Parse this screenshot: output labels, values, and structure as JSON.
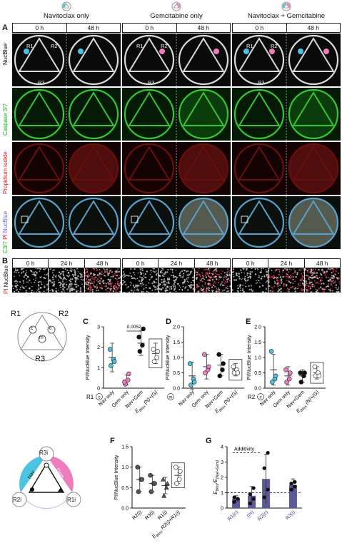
{
  "panel_letters": {
    "A": "A",
    "B": "B",
    "C": "C",
    "D": "D",
    "E": "E",
    "F": "F",
    "G": "G"
  },
  "conditions": [
    {
      "title": "Navitoclax only",
      "dot_left": "#4cc3e0",
      "dot_right": "#ffffff"
    },
    {
      "title": "Gemcitabine only",
      "dot_left": "#ffffff",
      "dot_right": "#ee7dc0"
    },
    {
      "title": "Navitoclax + Gemcitabine",
      "dot_left": "#4cc3e0",
      "dot_right": "#ee7dc0"
    }
  ],
  "time_headers_A": [
    "0 h",
    "48 h"
  ],
  "row_labels_A": {
    "nucblue": "NucBlue",
    "caspase": "Caspase 3/7",
    "pi": "Propidium iodide",
    "merge_c37": "C3/7",
    "merge_pi": "PI",
    "merge_nuc": "NucBlue"
  },
  "region_labels": {
    "r1": "R1",
    "r2": "R2",
    "r3": "R3"
  },
  "time_headers_B": [
    "0 h",
    "24 h",
    "48 h"
  ],
  "row_label_B": {
    "pi": "PI",
    "nuc": "NucBlue"
  },
  "schematic_top": {
    "r1": "R1",
    "r2": "R2",
    "r3": "R3",
    "c": "c",
    "m": "m"
  },
  "schematic_bottom": {
    "r3i": "R3i",
    "r2i": "R2i",
    "r1i": "R1i",
    "nav": "Nav",
    "gem": "Gem"
  },
  "colors": {
    "nav": "#4cc3e0",
    "gem": "#ee7dc0",
    "combo": "#111111",
    "bliss": "#ffffff",
    "gbar": "#5b5a96",
    "gray": "#555555"
  },
  "chart_data": [
    {
      "id": "C",
      "type": "scatter",
      "ylabel": "PI/NucBlue Intensity",
      "ylim": [
        0,
        3
      ],
      "yticks": [
        0,
        1,
        2,
        3
      ],
      "region_label": "R1",
      "region_sub": "c",
      "categories": [
        "Nav only",
        "Gem only",
        "Nav+Gem",
        "E_Bliss (N)+(G)"
      ],
      "annotation": {
        "text": "0.0052",
        "between": [
          1,
          2
        ]
      },
      "series": [
        {
          "name": "Nav only",
          "mean": 1.5,
          "sd": 0.7,
          "values": [
            1.1,
            1.4,
            1.9,
            1.3
          ]
        },
        {
          "name": "Gem only",
          "mean": 0.4,
          "sd": 0.25,
          "values": [
            0.2,
            0.4,
            0.3,
            0.7
          ]
        },
        {
          "name": "Nav+Gem",
          "mean": 2.2,
          "sd": 0.6,
          "values": [
            1.8,
            2.1,
            2.5,
            2.9
          ]
        },
        {
          "name": "E_Bliss (N)+(G)",
          "mean": 1.7,
          "sd": 0.5,
          "values": [
            1.3,
            1.5,
            1.9,
            1.8
          ]
        }
      ]
    },
    {
      "id": "D",
      "type": "scatter",
      "ylabel": "PI/NucBlue Intensity",
      "ylim": [
        0,
        2
      ],
      "yticks": [
        0.0,
        0.5,
        1.0,
        1.5,
        2.0
      ],
      "region_label": "",
      "region_sub": "m",
      "categories": [
        "Nav only",
        "Gem only",
        "Nav+Gem",
        "E_Bliss (N)+(G)"
      ],
      "series": [
        {
          "name": "Nav only",
          "mean": 0.4,
          "sd": 0.45,
          "values": [
            0.1,
            0.3,
            0.8,
            0.2
          ]
        },
        {
          "name": "Gem only",
          "mean": 0.7,
          "sd": 0.4,
          "values": [
            0.5,
            0.6,
            1.1,
            0.7
          ]
        },
        {
          "name": "Nav+Gem",
          "mean": 0.75,
          "sd": 0.35,
          "values": [
            0.4,
            0.6,
            1.1,
            0.8
          ]
        },
        {
          "name": "E_Bliss (N)+(G)",
          "mean": 0.6,
          "sd": 0.2,
          "values": [
            0.5,
            0.6,
            0.7,
            0.5
          ]
        }
      ]
    },
    {
      "id": "E",
      "type": "scatter",
      "ylabel": "PI/NucBlue Intensity",
      "ylim": [
        0,
        2
      ],
      "yticks": [
        0.0,
        0.5,
        1.0,
        1.5,
        2.0
      ],
      "region_label": "R2",
      "region_sub": "c",
      "categories": [
        "Nav only",
        "Gem only",
        "Nav+Gem",
        "E_Bliss (N)+(G)"
      ],
      "series": [
        {
          "name": "Nav only",
          "mean": 0.6,
          "sd": 0.5,
          "values": [
            0.2,
            0.3,
            1.2,
            0.4
          ]
        },
        {
          "name": "Gem only",
          "mean": 0.4,
          "sd": 0.3,
          "values": [
            0.2,
            0.3,
            0.6,
            0.5
          ]
        },
        {
          "name": "Nav+Gem",
          "mean": 0.4,
          "sd": 0.2,
          "values": [
            0.2,
            0.4,
            0.5,
            0.5
          ]
        },
        {
          "name": "E_Bliss (N)+(G)",
          "mean": 0.5,
          "sd": 0.2,
          "values": [
            0.4,
            0.5,
            0.7,
            0.4
          ]
        }
      ]
    },
    {
      "id": "F",
      "type": "scatter",
      "ylabel": "PI/NucBlue Intensity",
      "ylim": [
        0,
        1.5
      ],
      "yticks": [
        0.0,
        0.5,
        1.0,
        1.5
      ],
      "categories": [
        "R2(i)",
        "R3(i)",
        "R1(i)",
        "E_Bliss R2(i)+R1(i)"
      ],
      "series": [
        {
          "name": "R2(i)",
          "mean": 0.7,
          "sd": 0.3,
          "values": [
            0.4,
            0.7,
            1.0,
            0.7
          ]
        },
        {
          "name": "R3(i)",
          "mean": 0.6,
          "sd": 0.2,
          "values": [
            0.4,
            0.6,
            0.8,
            0.6
          ]
        },
        {
          "name": "R1(i)",
          "mean": 0.55,
          "sd": 0.2,
          "values": [
            0.3,
            0.5,
            0.7,
            0.6
          ]
        },
        {
          "name": "E_Bliss R2(i)+R1(i)",
          "mean": 0.8,
          "sd": 0.2,
          "values": [
            0.6,
            0.7,
            1.0,
            0.9
          ]
        }
      ]
    },
    {
      "id": "G",
      "type": "bar",
      "ylabel": "E_Bliss / E_(Nav+Gem)",
      "ylim": [
        0,
        4
      ],
      "yticks": [
        0,
        1,
        2,
        3,
        4
      ],
      "annotation": "Additivity",
      "additivity_line": 1,
      "categories": [
        "R1(c)",
        "(m)",
        "R2(c)",
        "R3(i)"
      ],
      "values": [
        0.6,
        0.8,
        1.9,
        1.5
      ],
      "sd": [
        0.2,
        0.6,
        1.6,
        0.4
      ],
      "points": [
        [
          0.4,
          0.6,
          0.7,
          0.6
        ],
        [
          0.3,
          0.6,
          0.9,
          1.3
        ],
        [
          0.7,
          1.2,
          2.6,
          3.6
        ],
        [
          1.2,
          1.4,
          1.6,
          1.7
        ]
      ]
    }
  ],
  "scale_bar_A": "",
  "scale_bar_B": ""
}
